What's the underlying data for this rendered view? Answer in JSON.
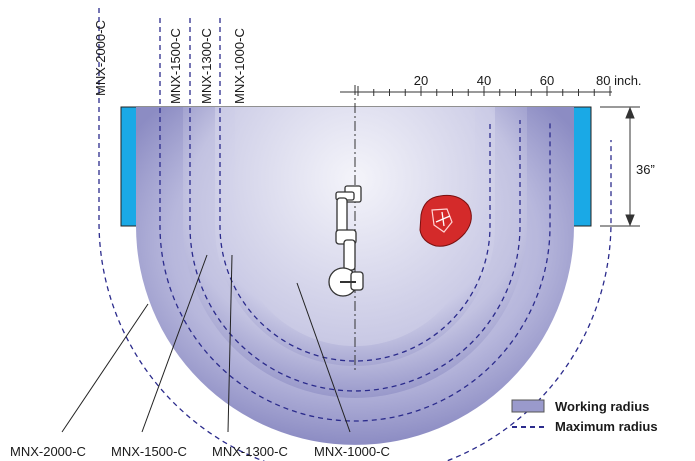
{
  "models_top": [
    "MNX-2000-C",
    "MNX-1500-C",
    "MNX-1300-C",
    "MNX-1000-C"
  ],
  "models_bottom": [
    "MNX-2000-C",
    "MNX-1500-C",
    "MNX-1300-C",
    "MNX-1000-C"
  ],
  "scale": {
    "ticks": [
      "20",
      "40",
      "60",
      "80 inch."
    ]
  },
  "dimension_label": "36”",
  "legend": {
    "working": "Working radius",
    "maximum": "Maximum radius"
  },
  "colors": {
    "work_envelope": "#8f8fc6",
    "work_envelope_center": "#dcdcee",
    "table_blue": "#1aa9e6",
    "max_radius_line": "#2b2b8c",
    "part_red": "#d42a2a"
  }
}
